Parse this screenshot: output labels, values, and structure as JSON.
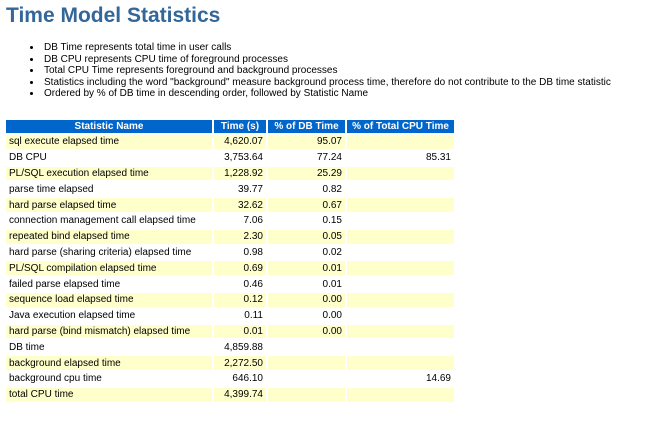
{
  "title": "Time Model Statistics",
  "notes": [
    "DB Time represents total time in user calls",
    "DB CPU represents CPU time of foreground processes",
    "Total CPU Time represents foreground and background processes",
    "Statistics including the word \"background\" measure background process time, therefore do not contribute to the DB time statistic",
    "Ordered by % of DB time in descending order, followed by Statistic Name"
  ],
  "table": {
    "headers": {
      "name": "Statistic Name",
      "time": "Time (s)",
      "pct_db": "% of DB Time",
      "pct_cpu": "% of Total CPU Time"
    },
    "rows": [
      {
        "name": "sql execute elapsed time",
        "time": "4,620.07",
        "pct_db": "95.07",
        "pct_cpu": ""
      },
      {
        "name": "DB CPU",
        "time": "3,753.64",
        "pct_db": "77.24",
        "pct_cpu": "85.31"
      },
      {
        "name": "PL/SQL execution elapsed time",
        "time": "1,228.92",
        "pct_db": "25.29",
        "pct_cpu": ""
      },
      {
        "name": "parse time elapsed",
        "time": "39.77",
        "pct_db": "0.82",
        "pct_cpu": ""
      },
      {
        "name": "hard parse elapsed time",
        "time": "32.62",
        "pct_db": "0.67",
        "pct_cpu": ""
      },
      {
        "name": "connection management call elapsed time",
        "time": "7.06",
        "pct_db": "0.15",
        "pct_cpu": ""
      },
      {
        "name": "repeated bind elapsed time",
        "time": "2.30",
        "pct_db": "0.05",
        "pct_cpu": ""
      },
      {
        "name": "hard parse (sharing criteria) elapsed time",
        "time": "0.98",
        "pct_db": "0.02",
        "pct_cpu": ""
      },
      {
        "name": "PL/SQL compilation elapsed time",
        "time": "0.69",
        "pct_db": "0.01",
        "pct_cpu": ""
      },
      {
        "name": "failed parse elapsed time",
        "time": "0.46",
        "pct_db": "0.01",
        "pct_cpu": ""
      },
      {
        "name": "sequence load elapsed time",
        "time": "0.12",
        "pct_db": "0.00",
        "pct_cpu": ""
      },
      {
        "name": "Java execution elapsed time",
        "time": "0.11",
        "pct_db": "0.00",
        "pct_cpu": ""
      },
      {
        "name": "hard parse (bind mismatch) elapsed time",
        "time": "0.01",
        "pct_db": "0.00",
        "pct_cpu": ""
      },
      {
        "name": "DB time",
        "time": "4,859.88",
        "pct_db": "",
        "pct_cpu": ""
      },
      {
        "name": "background elapsed time",
        "time": "2,272.50",
        "pct_db": "",
        "pct_cpu": ""
      },
      {
        "name": "background cpu time",
        "time": "646.10",
        "pct_db": "",
        "pct_cpu": "14.69"
      },
      {
        "name": "total CPU time",
        "time": "4,399.74",
        "pct_db": "",
        "pct_cpu": ""
      }
    ]
  },
  "colors": {
    "title": "#336699",
    "header_bg": "#0066cc",
    "row_highlight": "#ffffcc"
  }
}
